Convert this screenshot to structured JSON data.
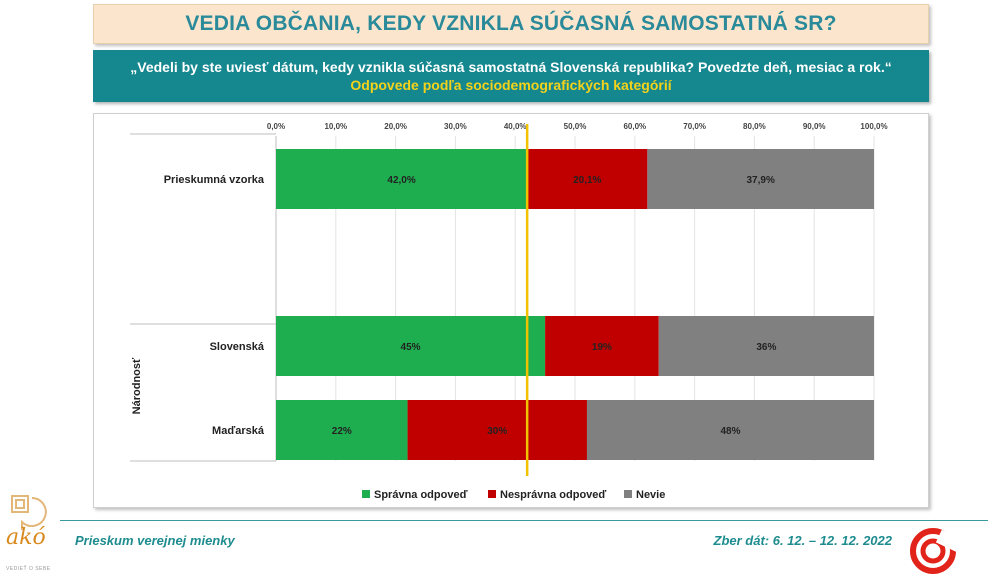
{
  "header": {
    "title": "VEDIA OBČANIA, KEDY VZNIKLA SÚČASNÁ SAMOSTATNÁ SR?",
    "question": "„Vedeli by ste uviesť dátum, kedy vznikla súčasná samostatná Slovenská republika? Povedzte deň, mesiac a rok.“",
    "subtitle": "Odpovede podľa sociodemografických kategórií"
  },
  "chart_data": {
    "type": "bar",
    "orientation": "horizontal",
    "stacked": true,
    "xlim": [
      0,
      100
    ],
    "x_ticks": [
      "0,0%",
      "10,0%",
      "20,0%",
      "30,0%",
      "40,0%",
      "50,0%",
      "60,0%",
      "70,0%",
      "80,0%",
      "90,0%",
      "100,0%"
    ],
    "group_label": "Národnosť",
    "categories": [
      "Prieskumná vzorka",
      "Slovenská",
      "Maďarská"
    ],
    "series": [
      {
        "name": "Správna odpoveď",
        "color": "#1fae4f",
        "values": [
          42.0,
          45,
          22
        ],
        "labels": [
          "42,0%",
          "45%",
          "22%"
        ]
      },
      {
        "name": "Nesprávna odpoveď",
        "color": "#c00000",
        "values": [
          20.1,
          19,
          30
        ],
        "labels": [
          "20,1%",
          "19%",
          "30%"
        ]
      },
      {
        "name": "Nevie",
        "color": "#808080",
        "values": [
          37.9,
          36,
          48
        ],
        "labels": [
          "37,9%",
          "36%",
          "48%"
        ]
      }
    ],
    "reference_line": {
      "value": 42.0,
      "color": "#f2c200"
    },
    "legend_position": "bottom-center",
    "grid": true
  },
  "footer": {
    "left": "Prieskum verejnej mienky",
    "right": "Zber dát: 6. 12. – 12. 12. 2022",
    "logo_text": "akó",
    "logo_tagline": "VEDIEŤ O SEBE"
  }
}
